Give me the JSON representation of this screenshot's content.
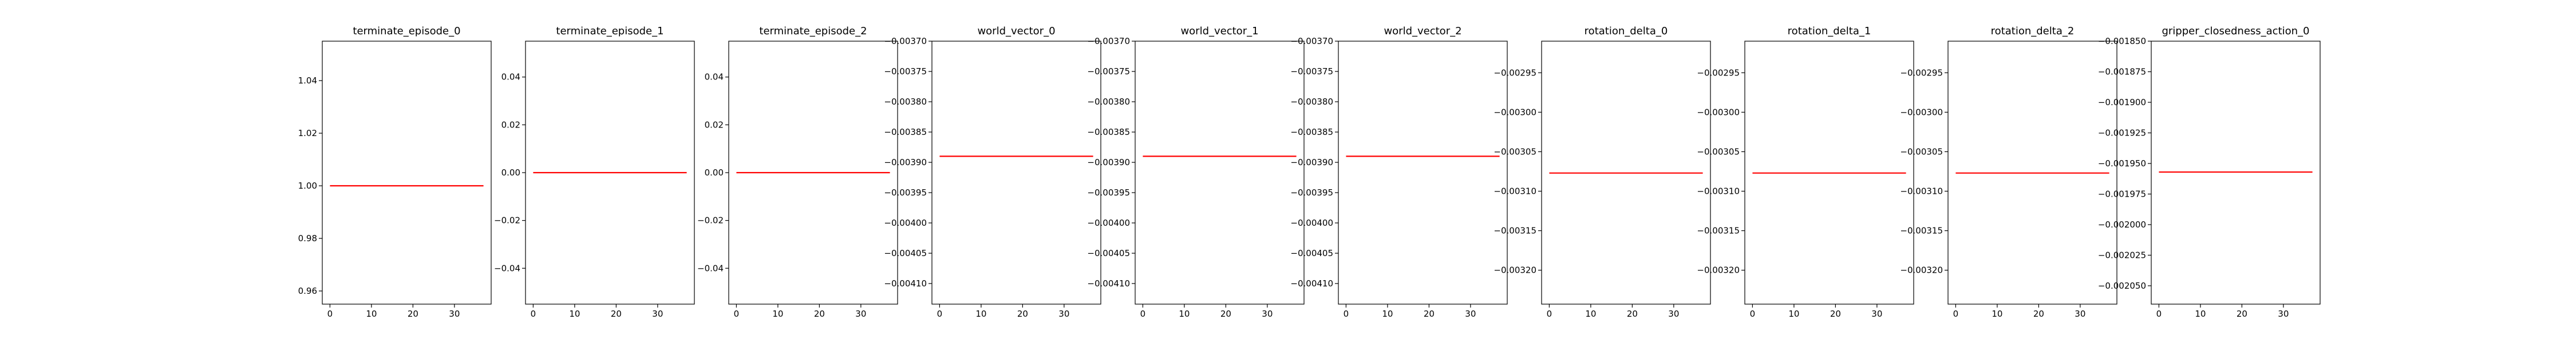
{
  "chart_data": [
    {
      "type": "line",
      "title": "terminate_episode_0",
      "x_range": [
        0,
        37
      ],
      "xticks": [
        0,
        10,
        20,
        30
      ],
      "xlim": [
        -1.85,
        38.85
      ],
      "ylim": [
        0.955,
        1.055
      ],
      "yticks": [
        0.96,
        0.98,
        1.0,
        1.02,
        1.04
      ],
      "ytick_labels": [
        "0.96",
        "0.98",
        "1.00",
        "1.02",
        "1.04"
      ],
      "y_value": 1.0,
      "series_color": "#ff0000"
    },
    {
      "type": "line",
      "title": "terminate_episode_1",
      "x_range": [
        0,
        37
      ],
      "xticks": [
        0,
        10,
        20,
        30
      ],
      "xlim": [
        -1.85,
        38.85
      ],
      "ylim": [
        -0.055,
        0.055
      ],
      "yticks": [
        -0.04,
        -0.02,
        0.0,
        0.02,
        0.04
      ],
      "ytick_labels": [
        "−0.04",
        "−0.02",
        "0.00",
        "0.02",
        "0.04"
      ],
      "y_value": 0.0,
      "series_color": "#ff0000"
    },
    {
      "type": "line",
      "title": "terminate_episode_2",
      "x_range": [
        0,
        37
      ],
      "xticks": [
        0,
        10,
        20,
        30
      ],
      "xlim": [
        -1.85,
        38.85
      ],
      "ylim": [
        -0.055,
        0.055
      ],
      "yticks": [
        -0.04,
        -0.02,
        0.0,
        0.02,
        0.04
      ],
      "ytick_labels": [
        "−0.04",
        "−0.02",
        "0.00",
        "0.02",
        "0.04"
      ],
      "y_value": 0.0,
      "series_color": "#ff0000"
    },
    {
      "type": "line",
      "title": "world_vector_0",
      "x_range": [
        0,
        37
      ],
      "xticks": [
        0,
        10,
        20,
        30
      ],
      "xlim": [
        -1.85,
        38.85
      ],
      "ylim": [
        -0.004134,
        -0.0037
      ],
      "yticks": [
        -0.0037,
        -0.00375,
        -0.0038,
        -0.00385,
        -0.0039,
        -0.00395,
        -0.004,
        -0.00405,
        -0.0041
      ],
      "ytick_labels": [
        "−0.00370",
        "−0.00375",
        "−0.00380",
        "−0.00385",
        "−0.00390",
        "−0.00395",
        "−0.00400",
        "−0.00405",
        "−0.00410"
      ],
      "y_value": -0.00389,
      "series_color": "#ff0000"
    },
    {
      "type": "line",
      "title": "world_vector_1",
      "x_range": [
        0,
        37
      ],
      "xticks": [
        0,
        10,
        20,
        30
      ],
      "xlim": [
        -1.85,
        38.85
      ],
      "ylim": [
        -0.004134,
        -0.0037
      ],
      "yticks": [
        -0.0037,
        -0.00375,
        -0.0038,
        -0.00385,
        -0.0039,
        -0.00395,
        -0.004,
        -0.00405,
        -0.0041
      ],
      "ytick_labels": [
        "−0.00370",
        "−0.00375",
        "−0.00380",
        "−0.00385",
        "−0.00390",
        "−0.00395",
        "−0.00400",
        "−0.00405",
        "−0.00410"
      ],
      "y_value": -0.00389,
      "series_color": "#ff0000"
    },
    {
      "type": "line",
      "title": "world_vector_2",
      "x_range": [
        0,
        37
      ],
      "xticks": [
        0,
        10,
        20,
        30
      ],
      "xlim": [
        -1.85,
        38.85
      ],
      "ylim": [
        -0.004134,
        -0.0037
      ],
      "yticks": [
        -0.0037,
        -0.00375,
        -0.0038,
        -0.00385,
        -0.0039,
        -0.00395,
        -0.004,
        -0.00405,
        -0.0041
      ],
      "ytick_labels": [
        "−0.00370",
        "−0.00375",
        "−0.00380",
        "−0.00385",
        "−0.00390",
        "−0.00395",
        "−0.00400",
        "−0.00405",
        "−0.00410"
      ],
      "y_value": -0.00389,
      "series_color": "#ff0000"
    },
    {
      "type": "line",
      "title": "rotation_delta_0",
      "x_range": [
        0,
        37
      ],
      "xticks": [
        0,
        10,
        20,
        30
      ],
      "xlim": [
        -1.85,
        38.85
      ],
      "ylim": [
        -0.003243,
        -0.00291
      ],
      "yticks": [
        -0.00295,
        -0.003,
        -0.00305,
        -0.0031,
        -0.00315,
        -0.0032
      ],
      "ytick_labels": [
        "−0.00295",
        "−0.00300",
        "−0.00305",
        "−0.00310",
        "−0.00315",
        "−0.00320"
      ],
      "y_value": -0.003077,
      "series_color": "#ff0000"
    },
    {
      "type": "line",
      "title": "rotation_delta_1",
      "x_range": [
        0,
        37
      ],
      "xticks": [
        0,
        10,
        20,
        30
      ],
      "xlim": [
        -1.85,
        38.85
      ],
      "ylim": [
        -0.003243,
        -0.00291
      ],
      "yticks": [
        -0.00295,
        -0.003,
        -0.00305,
        -0.0031,
        -0.00315,
        -0.0032
      ],
      "ytick_labels": [
        "−0.00295",
        "−0.00300",
        "−0.00305",
        "−0.00310",
        "−0.00315",
        "−0.00320"
      ],
      "y_value": -0.003077,
      "series_color": "#ff0000"
    },
    {
      "type": "line",
      "title": "rotation_delta_2",
      "x_range": [
        0,
        37
      ],
      "xticks": [
        0,
        10,
        20,
        30
      ],
      "xlim": [
        -1.85,
        38.85
      ],
      "ylim": [
        -0.003243,
        -0.00291
      ],
      "yticks": [
        -0.00295,
        -0.003,
        -0.00305,
        -0.0031,
        -0.00315,
        -0.0032
      ],
      "ytick_labels": [
        "−0.00295",
        "−0.00300",
        "−0.00305",
        "−0.00310",
        "−0.00315",
        "−0.00320"
      ],
      "y_value": -0.003077,
      "series_color": "#ff0000"
    },
    {
      "type": "line",
      "title": "gripper_closedness_action_0",
      "x_range": [
        0,
        37
      ],
      "xticks": [
        0,
        10,
        20,
        30
      ],
      "xlim": [
        -1.85,
        38.85
      ],
      "ylim": [
        -0.002065,
        -0.00185
      ],
      "yticks": [
        -0.00185,
        -0.001875,
        -0.0019,
        -0.001925,
        -0.00195,
        -0.001975,
        -0.002,
        -0.002025,
        -0.00205
      ],
      "ytick_labels": [
        "−0.001850",
        "−0.001875",
        "−0.001900",
        "−0.001925",
        "−0.001950",
        "−0.001975",
        "−0.002000",
        "−0.002025",
        "−0.002050"
      ],
      "y_value": -0.001957,
      "series_color": "#ff0000"
    }
  ]
}
